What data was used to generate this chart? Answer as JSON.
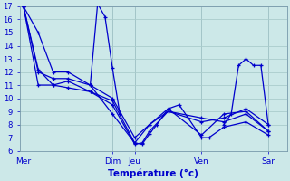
{
  "background_color": "#cce8e8",
  "grid_color": "#aacccc",
  "line_color": "#0000cc",
  "xlabel": "Température (°c)",
  "ylim": [
    6,
    17
  ],
  "xlim": [
    0,
    144
  ],
  "yticks": [
    6,
    7,
    8,
    9,
    10,
    11,
    12,
    13,
    14,
    15,
    16,
    17
  ],
  "day_labels": [
    "Mer",
    "Dim",
    "Jeu",
    "Ven",
    "Sar"
  ],
  "day_positions": [
    2,
    50,
    62,
    98,
    134
  ],
  "series1": {
    "x": [
      2,
      10,
      18,
      26,
      38,
      50,
      62,
      66,
      70,
      74,
      80,
      86,
      98,
      102,
      110,
      122,
      134
    ],
    "y": [
      17,
      15,
      12,
      12,
      11,
      8.8,
      6.6,
      6.5,
      7.3,
      8.0,
      9.2,
      9.5,
      7.0,
      7.0,
      7.8,
      8.2,
      7.2
    ]
  },
  "series2": {
    "x": [
      2,
      10,
      18,
      26,
      38,
      50,
      62,
      66,
      70,
      80,
      98,
      110,
      122,
      134
    ],
    "y": [
      17,
      12.2,
      11.0,
      11.3,
      10.5,
      9.5,
      6.5,
      6.6,
      7.5,
      9.0,
      8.5,
      8.2,
      8.8,
      7.5
    ]
  },
  "series3": {
    "x": [
      2,
      10,
      18,
      26,
      38,
      50,
      62,
      70,
      80,
      98,
      110,
      122,
      134
    ],
    "y": [
      17,
      12.0,
      11.5,
      11.5,
      11.0,
      10.0,
      7.0,
      8.0,
      9.0,
      8.2,
      8.5,
      9.2,
      8.0
    ]
  },
  "series4": {
    "x": [
      2,
      10,
      18,
      26,
      38,
      50,
      62,
      70,
      80,
      98,
      110,
      122,
      134
    ],
    "y": [
      17,
      11.0,
      11.0,
      10.8,
      10.5,
      9.8,
      6.6,
      8.0,
      9.2,
      7.2,
      8.8,
      9.0,
      7.5
    ]
  },
  "spike": {
    "x": [
      38,
      42,
      46,
      50,
      54
    ],
    "y": [
      11.0,
      17.2,
      16.2,
      12.3,
      8.8
    ]
  },
  "fri_peak": {
    "x": [
      110,
      114,
      118,
      122,
      126,
      130,
      134
    ],
    "y": [
      8.0,
      8.8,
      12.5,
      13.0,
      12.5,
      12.5,
      8.0
    ]
  }
}
